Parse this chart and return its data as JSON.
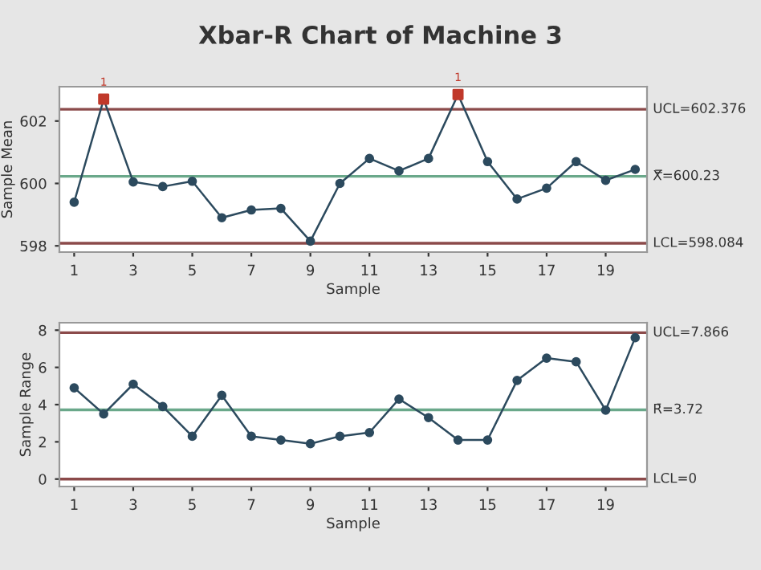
{
  "chart_data": [
    {
      "type": "line",
      "title": "Xbar-R Chart of Machine 3",
      "xlabel": "Sample",
      "ylabel": "Sample Mean",
      "x": [
        1,
        2,
        3,
        4,
        5,
        6,
        7,
        8,
        9,
        10,
        11,
        12,
        13,
        14,
        15,
        16,
        17,
        18,
        19,
        20
      ],
      "series": [
        {
          "color": "#2c4a5e",
          "values": [
            599.4,
            602.7,
            600.05,
            599.9,
            600.07,
            598.9,
            599.15,
            599.2,
            598.15,
            600.0,
            600.8,
            600.4,
            600.8,
            602.85,
            600.7,
            599.5,
            599.85,
            600.7,
            600.1,
            600.45
          ]
        },
        {
          "type": "scatter",
          "marker": "square",
          "color": "#c0392b",
          "x": [
            2,
            14
          ],
          "values": [
            602.7,
            602.85
          ]
        }
      ],
      "annotations": [
        {
          "text": "1",
          "x": 2,
          "y": 602.7
        },
        {
          "text": "1",
          "x": 14,
          "y": 602.85
        }
      ],
      "ref_lines": [
        {
          "axis": "y",
          "value": 602.376,
          "label": "UCL=602.376",
          "color": "#8b4a4a"
        },
        {
          "axis": "y",
          "value": 600.23,
          "label": "X̿=600.23",
          "color": "#6aa88a"
        },
        {
          "axis": "y",
          "value": 598.084,
          "label": "LCL=598.084",
          "color": "#8b4a4a"
        }
      ],
      "xlim": [
        0.5,
        20.4
      ],
      "xticks": [
        1,
        3,
        5,
        7,
        9,
        11,
        13,
        15,
        17,
        19
      ],
      "ylim": [
        597.8,
        603.1
      ],
      "yticks": [
        598,
        600,
        602
      ],
      "marker": "circle",
      "grid": false,
      "legend": false
    },
    {
      "type": "line",
      "xlabel": "Sample",
      "ylabel": "Sample Range",
      "x": [
        1,
        2,
        3,
        4,
        5,
        6,
        7,
        8,
        9,
        10,
        11,
        12,
        13,
        14,
        15,
        16,
        17,
        18,
        19,
        20
      ],
      "series": [
        {
          "color": "#2c4a5e",
          "values": [
            4.9,
            3.5,
            5.1,
            3.9,
            2.3,
            4.5,
            2.3,
            2.1,
            1.9,
            2.3,
            2.5,
            4.3,
            3.3,
            2.1,
            2.1,
            5.3,
            6.5,
            6.3,
            3.7,
            7.6
          ]
        }
      ],
      "ref_lines": [
        {
          "axis": "y",
          "value": 7.866,
          "label": "UCL=7.866",
          "color": "#8b4a4a"
        },
        {
          "axis": "y",
          "value": 3.72,
          "label": "R̄=3.72",
          "color": "#6aa88a"
        },
        {
          "axis": "y",
          "value": 0,
          "label": "LCL=0",
          "color": "#8b4a4a"
        }
      ],
      "xlim": [
        0.5,
        20.4
      ],
      "xticks": [
        1,
        3,
        5,
        7,
        9,
        11,
        13,
        15,
        17,
        19
      ],
      "ylim": [
        -0.4,
        8.4
      ],
      "yticks": [
        0,
        2,
        4,
        6,
        8
      ],
      "marker": "circle",
      "grid": false,
      "legend": false
    }
  ]
}
